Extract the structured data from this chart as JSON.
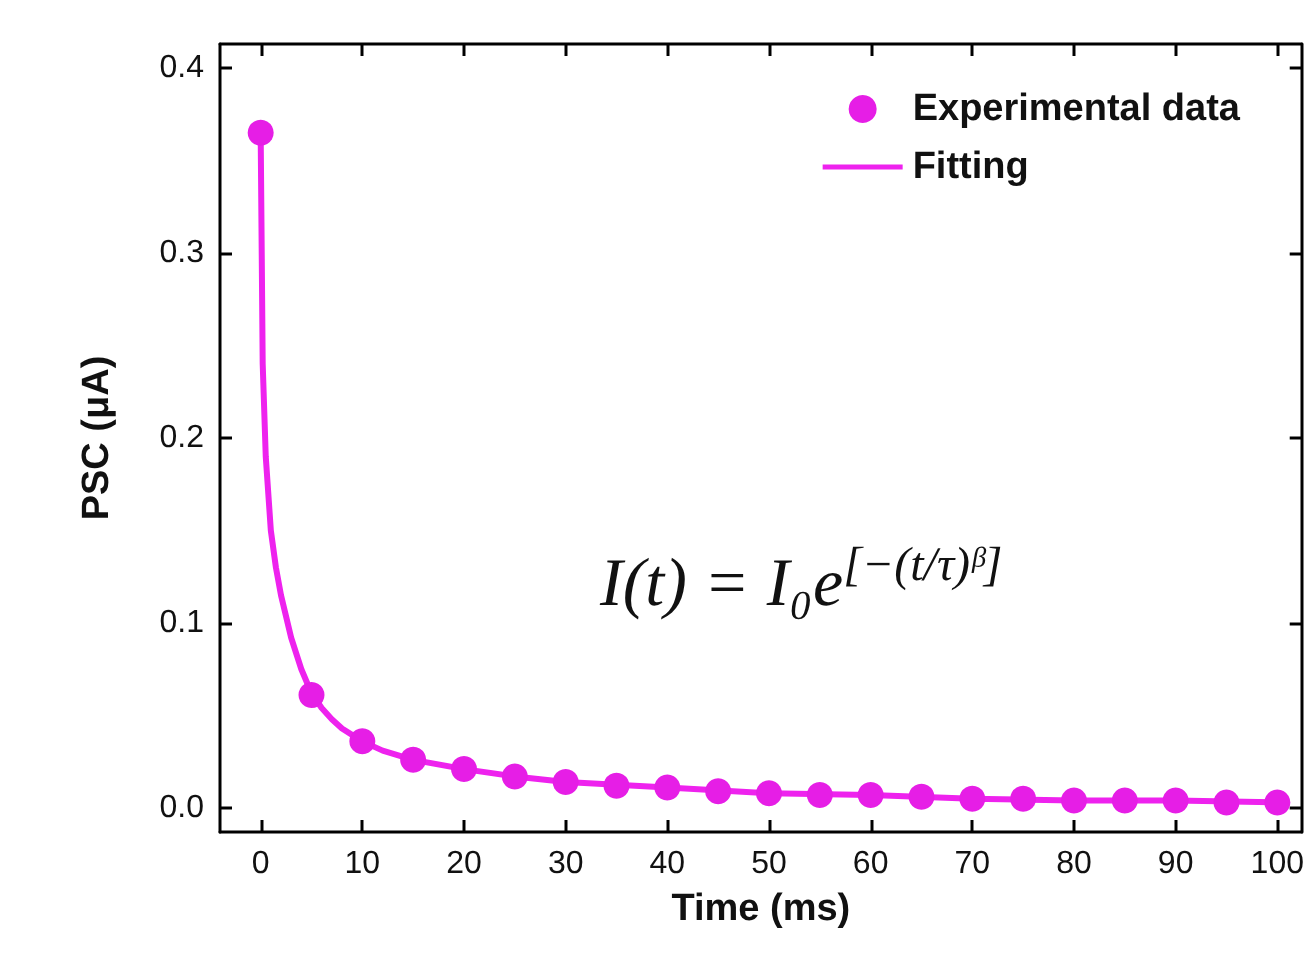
{
  "chart_data": {
    "type": "scatter",
    "xlabel": "Time (ms)",
    "ylabel": "PSC (μA)",
    "xlim": [
      -4,
      102.4
    ],
    "ylim": [
      -0.013,
      0.413
    ],
    "xticks": [
      0,
      10,
      20,
      30,
      40,
      50,
      60,
      70,
      80,
      90,
      100
    ],
    "yticks": [
      {
        "value": 0,
        "label": "0.0"
      },
      {
        "value": 0.1,
        "label": "0.1"
      },
      {
        "value": 0.2,
        "label": "0.2"
      },
      {
        "value": 0.3,
        "label": "0.3"
      },
      {
        "value": 0.4,
        "label": "0.4"
      }
    ],
    "legend": "top right",
    "grid": false,
    "annotations": [
      {
        "text": "I(t) = I₀e$^{[−(t/τ)ᵝ]}$"
      }
    ],
    "series": [
      {
        "name": "Experimental data",
        "marker": "circle",
        "color": "#e61ee6",
        "x": [
          0,
          5,
          10,
          15,
          20,
          25,
          30,
          35,
          40,
          45,
          50,
          55,
          60,
          65,
          70,
          75,
          80,
          85,
          90,
          95,
          100
        ],
        "values": [
          0.365,
          0.061,
          0.036,
          0.026,
          0.021,
          0.017,
          0.014,
          0.012,
          0.011,
          0.009,
          0.008,
          0.007,
          0.007,
          0.006,
          0.005,
          0.005,
          0.004,
          0.004,
          0.004,
          0.003,
          0.003
        ]
      },
      {
        "name": "Fitting",
        "type": "line",
        "marker": "none",
        "color": "#ee22ee",
        "x": [
          0,
          0.2,
          0.5,
          1,
          1.5,
          2,
          3,
          4,
          5,
          6,
          7,
          8,
          10,
          12,
          15,
          20,
          25,
          30,
          40,
          50,
          60,
          70,
          80,
          90,
          100
        ],
        "values": [
          0.365,
          0.24,
          0.19,
          0.15,
          0.13,
          0.115,
          0.092,
          0.075,
          0.062,
          0.054,
          0.048,
          0.043,
          0.036,
          0.031,
          0.026,
          0.021,
          0.017,
          0.014,
          0.011,
          0.008,
          0.007,
          0.005,
          0.004,
          0.004,
          0.003
        ]
      }
    ]
  }
}
